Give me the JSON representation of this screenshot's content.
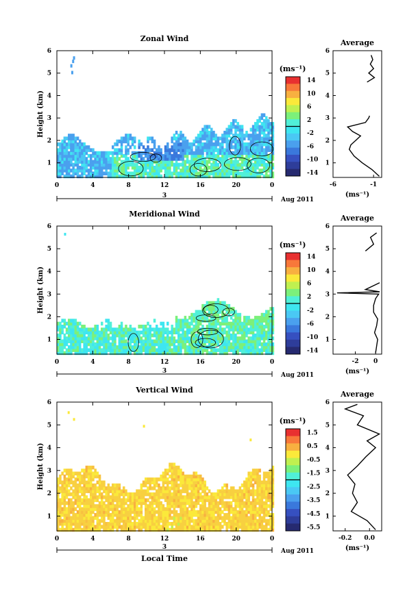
{
  "colors": {
    "blue_dark": "#2e3d9a",
    "blue": "#3a73d8",
    "light_blue": "#4aa8ee",
    "cyan": "#3ee6f0",
    "aqua": "#50f0d8",
    "green": "#7cf07a",
    "lime": "#c0f050",
    "yellow": "#fbe93a",
    "gold": "#f8d040",
    "orange": "#f8a030",
    "red": "#e83030"
  },
  "chart_data": [
    {
      "type": "heatmap",
      "title": "Zonal Wind",
      "ylabel": "Height (km)",
      "xticks": [
        "0",
        "4",
        "8",
        "12",
        "16",
        "20",
        "0"
      ],
      "yticks": [
        "1",
        "2",
        "3",
        "4",
        "5",
        "6"
      ],
      "xlim": [
        0,
        24
      ],
      "ylim": [
        0.35,
        6.0
      ],
      "colorbar_title": "(ms⁻¹)",
      "colorbar_ticks": [
        "14",
        "10",
        "6",
        "2",
        "-2",
        "-6",
        "-10",
        "-14"
      ],
      "date_marker": "3",
      "date_label": "Aug 2011",
      "profile": {
        "title": "Average",
        "xlabel": "(ms⁻¹)",
        "xticks": [
          "-6",
          "-1"
        ],
        "xlim": [
          -6,
          0
        ],
        "y": [
          0.4,
          0.7,
          1.0,
          1.3,
          1.6,
          1.8,
          2.0,
          2.2,
          2.4,
          2.6,
          2.8,
          3.0,
          3.1,
          4.6,
          4.8,
          5.0,
          5.2,
          5.4,
          5.6,
          5.8
        ],
        "x": [
          -0.3,
          -1.2,
          -2.4,
          -3.4,
          -4.0,
          -3.8,
          -3.2,
          -2.6,
          -3.6,
          -4.2,
          -2.0,
          -1.6,
          -1.5,
          -1.8,
          -0.9,
          -1.6,
          -1.0,
          -1.4,
          -1.1,
          -1.3
        ]
      }
    },
    {
      "type": "heatmap",
      "title": "Meridional Wind",
      "ylabel": "Height (km)",
      "xticks": [
        "0",
        "4",
        "8",
        "12",
        "16",
        "20",
        "0"
      ],
      "yticks": [
        "1",
        "2",
        "3",
        "4",
        "5",
        "6"
      ],
      "xlim": [
        0,
        24
      ],
      "ylim": [
        0.35,
        6.0
      ],
      "colorbar_title": "(ms⁻¹)",
      "colorbar_ticks": [
        "14",
        "10",
        "6",
        "2",
        "-2",
        "-6",
        "-10",
        "-14"
      ],
      "date_marker": "3",
      "date_label": "Aug 2011",
      "profile": {
        "title": "Average",
        "xlabel": "(ms⁻¹)",
        "xticks": [
          "-2",
          "0"
        ],
        "xlim": [
          -4.2,
          0.6
        ],
        "y": [
          0.4,
          0.7,
          1.0,
          1.3,
          1.6,
          1.9,
          2.2,
          2.5,
          2.8,
          3.0,
          3.05,
          3.1,
          3.2,
          3.5,
          4.9,
          5.2,
          5.5,
          5.7
        ],
        "x": [
          0.0,
          0.1,
          0.2,
          -0.1,
          0.1,
          0.2,
          -0.2,
          -0.2,
          0.0,
          0.3,
          -3.8,
          0.4,
          -1.0,
          0.4,
          -1.0,
          -0.2,
          -0.5,
          0.1
        ]
      }
    },
    {
      "type": "heatmap",
      "title": "Vertical Wind",
      "ylabel": "Height (km)",
      "xlabel": "Local Time",
      "xticks": [
        "0",
        "4",
        "8",
        "12",
        "16",
        "20",
        "0"
      ],
      "yticks": [
        "1",
        "2",
        "3",
        "4",
        "5",
        "6"
      ],
      "xlim": [
        0,
        24
      ],
      "ylim": [
        0.35,
        6.0
      ],
      "colorbar_title": "(ms⁻¹)",
      "colorbar_ticks": [
        "1.5",
        "0.5",
        "-0.5",
        "-1.5",
        "-2.5",
        "-3.5",
        "-4.5",
        "-5.5"
      ],
      "date_marker": "3",
      "date_label": "Aug 2011",
      "profile": {
        "title": "Average",
        "xlabel": "(ms⁻¹)",
        "xticks": [
          "-0.2",
          "0.0"
        ],
        "xlim": [
          -0.3,
          0.1
        ],
        "y": [
          0.4,
          0.8,
          1.2,
          1.6,
          2.0,
          2.4,
          2.8,
          3.2,
          3.6,
          4.0,
          4.3,
          4.6,
          5.0,
          5.4,
          5.7,
          5.9
        ],
        "x": [
          0.05,
          -0.02,
          -0.15,
          -0.1,
          -0.14,
          -0.12,
          -0.18,
          -0.1,
          -0.03,
          0.05,
          -0.02,
          0.08,
          -0.1,
          -0.05,
          -0.2,
          -0.1
        ]
      }
    }
  ]
}
